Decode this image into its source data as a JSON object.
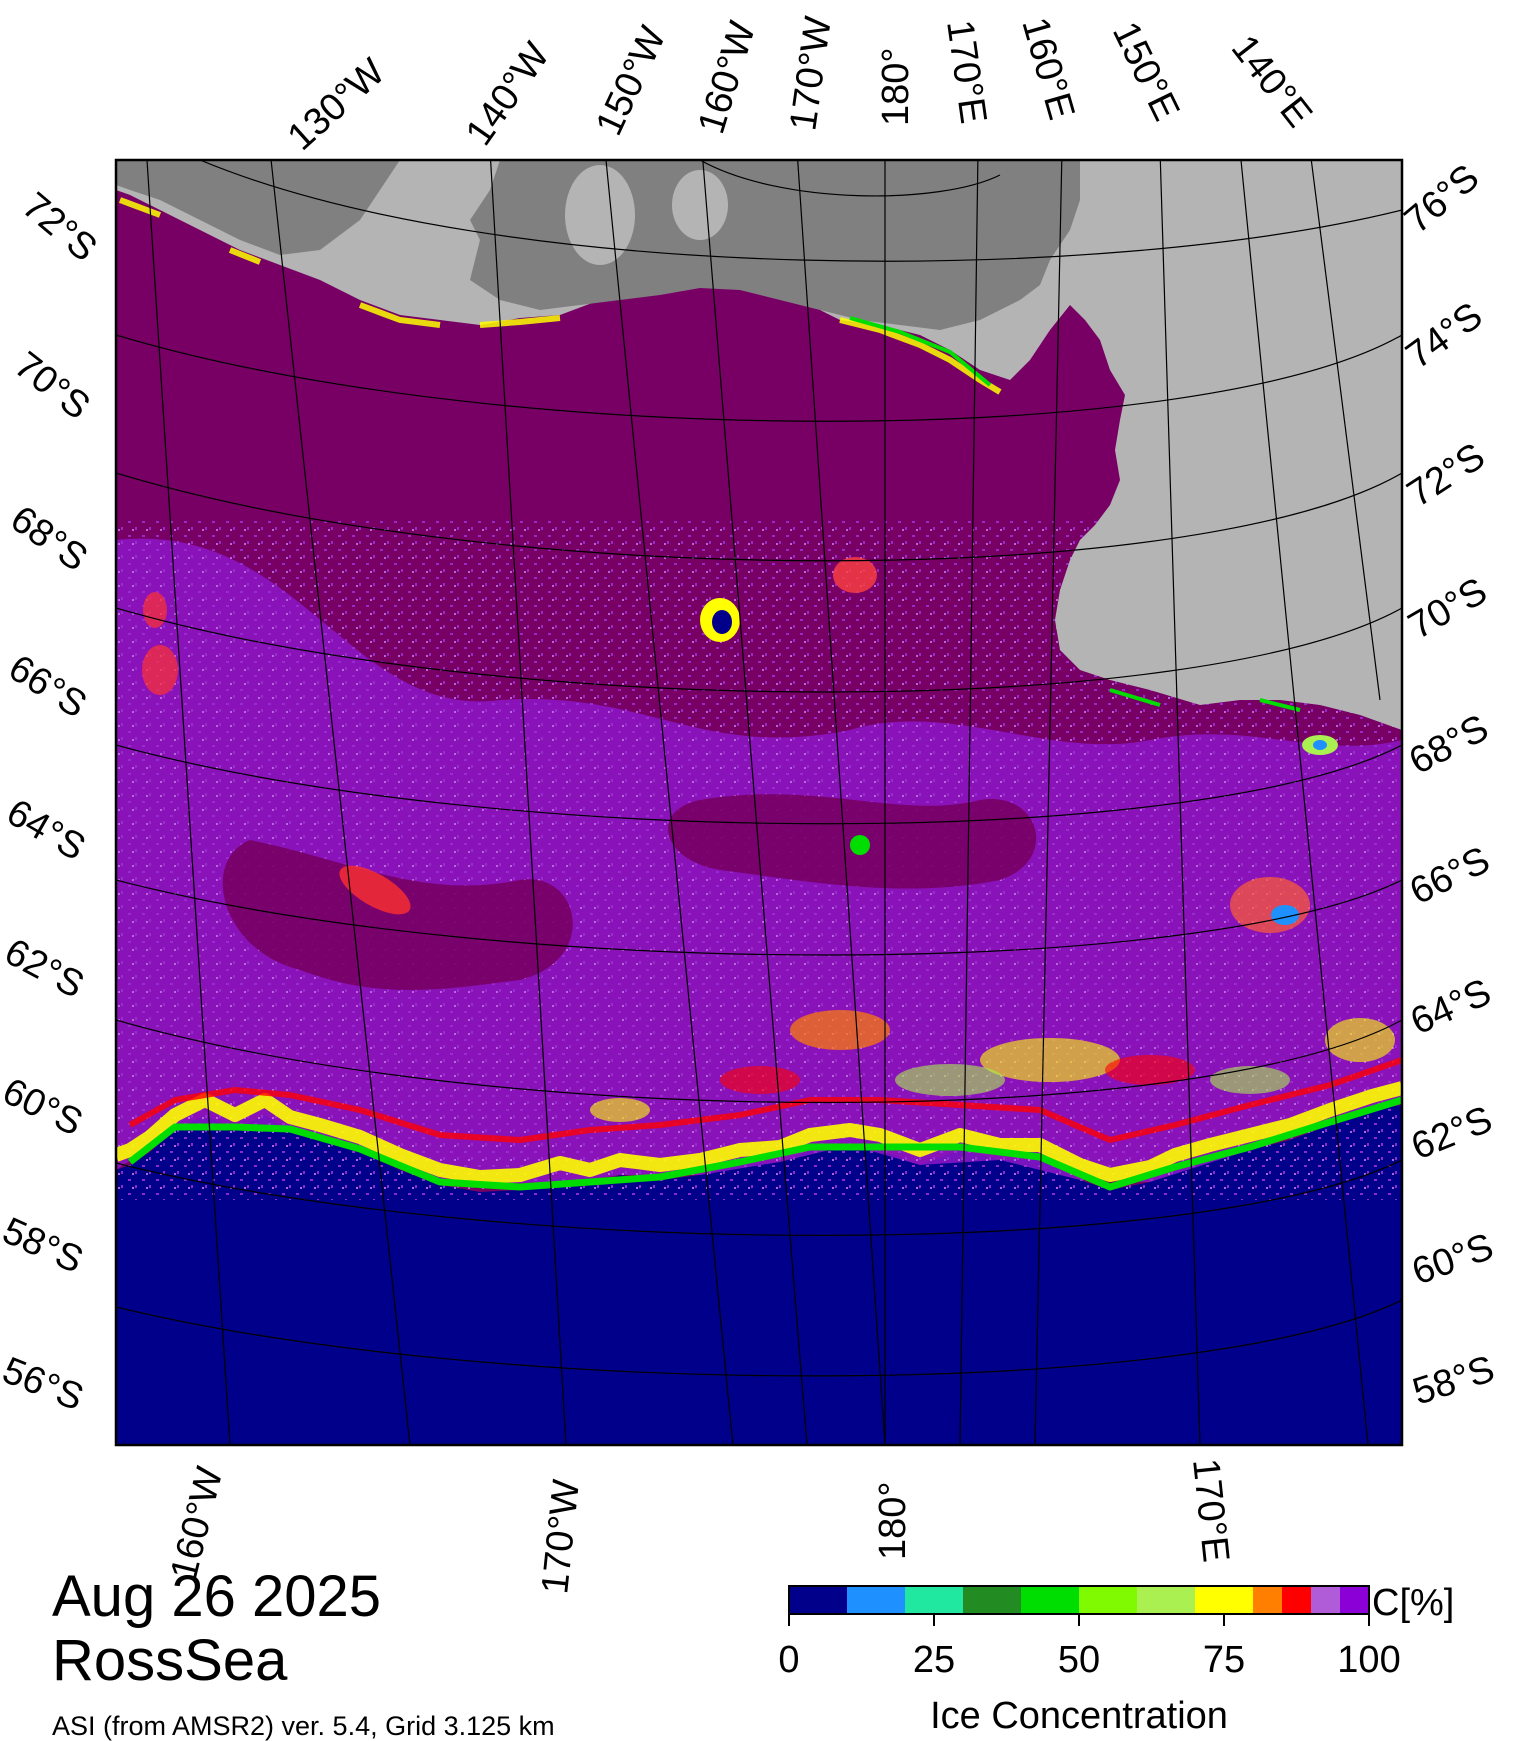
{
  "map": {
    "date": "Aug 26 2025",
    "region": "RossSea",
    "source": "ASI (from AMSR2) ver. 5.4,  Grid 3.125 km",
    "colors": {
      "open_water": "#00008b",
      "land_ice_shelf": "#b4b4b4",
      "land_dark": "#808080",
      "ice_full": "#780064"
    },
    "top_longitude_labels": [
      "130°W",
      "140°W",
      "150°W",
      "160°W",
      "170°W",
      "180°",
      "170°E",
      "160°E",
      "150°E",
      "140°E"
    ],
    "bottom_longitude_labels": [
      "160°W",
      "170°W",
      "180°",
      "170°E"
    ],
    "left_latitude_labels": [
      "72°S",
      "70°S",
      "68°S",
      "66°S",
      "64°S",
      "62°S",
      "60°S",
      "58°S",
      "56°S"
    ],
    "right_latitude_labels": [
      "76°S",
      "74°S",
      "72°S",
      "70°S",
      "68°S",
      "66°S",
      "64°S",
      "62°S",
      "60°S",
      "58°S"
    ]
  },
  "colorbar": {
    "title": "Ice Concentration",
    "unit": "C[%]",
    "ticks": [
      "0",
      "25",
      "50",
      "75",
      "100"
    ],
    "tick_values": [
      0,
      25,
      50,
      75,
      100
    ],
    "bins": [
      {
        "from": 0,
        "to": 10,
        "color": "#00008b"
      },
      {
        "from": 10,
        "to": 20,
        "color": "#1e90ff"
      },
      {
        "from": 20,
        "to": 30,
        "color": "#20e8a0"
      },
      {
        "from": 30,
        "to": 40,
        "color": "#228b22"
      },
      {
        "from": 40,
        "to": 50,
        "color": "#00dd00"
      },
      {
        "from": 50,
        "to": 60,
        "color": "#7ffa00"
      },
      {
        "from": 60,
        "to": 70,
        "color": "#aaf050"
      },
      {
        "from": 70,
        "to": 80,
        "color": "#ffff00"
      },
      {
        "from": 80,
        "to": 85,
        "color": "#ff8000"
      },
      {
        "from": 85,
        "to": 90,
        "color": "#ff0000"
      },
      {
        "from": 90,
        "to": 95,
        "color": "#b05cd8"
      },
      {
        "from": 95,
        "to": 100,
        "color": "#8a00d6"
      }
    ]
  }
}
